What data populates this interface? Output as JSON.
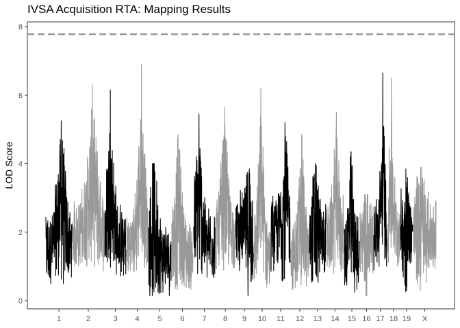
{
  "chart_data": {
    "type": "line",
    "title": "IVSA Acquisition RTA: Mapping Results",
    "xlabel": "",
    "ylabel": "LOD Score",
    "ylim": [
      0,
      8
    ],
    "y_ticks": [
      0,
      2,
      4,
      6,
      8
    ],
    "threshold": {
      "value": 7.78,
      "style": "dashed",
      "color": "#999999"
    },
    "grid": false,
    "chromosome_colors": [
      "#000000",
      "#999999"
    ],
    "chromosomes": [
      {
        "label": "1",
        "peak": 5.25
      },
      {
        "label": "2",
        "peak": 6.3
      },
      {
        "label": "3",
        "peak": 6.15
      },
      {
        "label": "4",
        "peak": 6.9
      },
      {
        "label": "5",
        "peak": 4.0
      },
      {
        "label": "6",
        "peak": 4.85
      },
      {
        "label": "7",
        "peak": 5.45
      },
      {
        "label": "8",
        "peak": 5.65
      },
      {
        "label": "9",
        "peak": 3.85
      },
      {
        "label": "10",
        "peak": 6.2
      },
      {
        "label": "11",
        "peak": 5.2
      },
      {
        "label": "12",
        "peak": 4.85
      },
      {
        "label": "13",
        "peak": 4.0
      },
      {
        "label": "14",
        "peak": 5.5
      },
      {
        "label": "15",
        "peak": 4.35
      },
      {
        "label": "16",
        "peak": 3.1
      },
      {
        "label": "17",
        "peak": 6.65
      },
      {
        "label": "18",
        "peak": 6.5
      },
      {
        "label": "19",
        "peak": 3.85
      },
      {
        "label": "X",
        "peak": 3.9
      }
    ]
  }
}
